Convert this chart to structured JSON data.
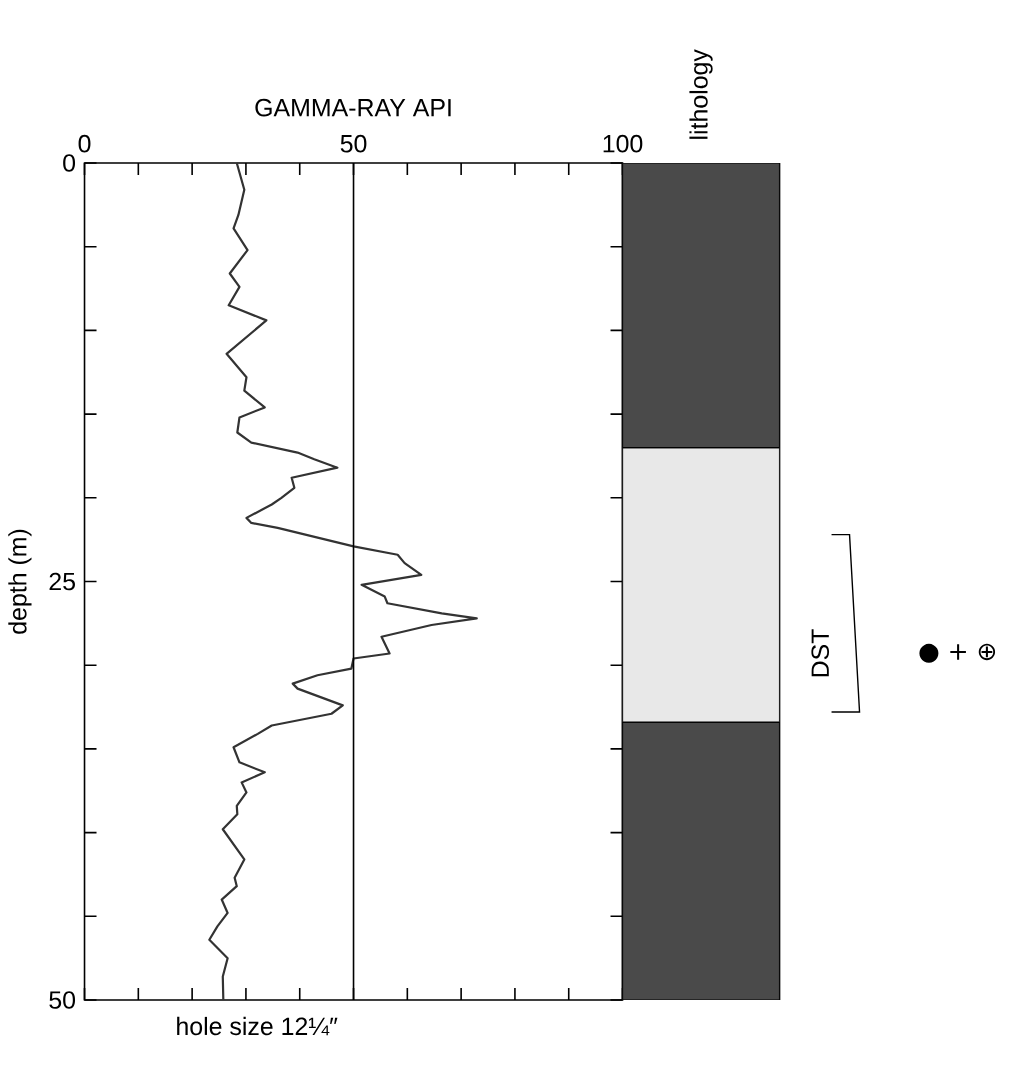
{
  "chart_data": [
    {
      "type": "line",
      "xlabel": "GAMMA-RAY API",
      "ylabel": "depth (m)",
      "xlim": [
        0,
        100
      ],
      "ylim": [
        50,
        0
      ],
      "xticks": [
        0,
        {
          "value": 10,
          "label": null
        },
        {
          "value": 20,
          "label": null
        },
        {
          "value": 30,
          "label": null
        },
        {
          "value": 40,
          "label": null
        },
        50,
        {
          "value": 60,
          "label": null
        },
        {
          "value": 70,
          "label": null
        },
        {
          "value": 80,
          "label": null
        },
        {
          "value": 90,
          "label": null
        },
        100
      ],
      "yticks": [
        0,
        {
          "value": 5,
          "label": null
        },
        {
          "value": 10,
          "label": null
        },
        {
          "value": 15,
          "label": null
        },
        {
          "value": 20,
          "label": null
        },
        25,
        {
          "value": 30,
          "label": null
        },
        {
          "value": 35,
          "label": null
        },
        {
          "value": 40,
          "label": null
        },
        {
          "value": 45,
          "label": null
        },
        50
      ],
      "ref_lines": [
        {
          "axis": "x",
          "value": 50
        }
      ],
      "annotations": [
        "hole size 12¼″"
      ],
      "series": [
        {
          "color": "#333333",
          "x": [
            28.3,
            29.7,
            28.6,
            27.7,
            30.3,
            27.0,
            28.8,
            26.8,
            33.8,
            26.4,
            30.1,
            29.7,
            33.5,
            28.8,
            28.4,
            31.0,
            39.6,
            42.7,
            47.0,
            38.5,
            39.0,
            36.6,
            34.8,
            30.1,
            31.0,
            35.9,
            50.0,
            58.2,
            59.5,
            62.6,
            51.5,
            55.8,
            56.3,
            66.4,
            72.9,
            64.5,
            55.2,
            56.7,
            50.0,
            49.6,
            43.3,
            38.7,
            39.6,
            48.0,
            45.9,
            34.8,
            32.2,
            27.7,
            28.8,
            33.5,
            29.2,
            30.1,
            28.3,
            28.4,
            25.7,
            29.7,
            27.9,
            28.3,
            25.5,
            26.6,
            24.7,
            23.2,
            26.6,
            25.7,
            25.8
          ],
          "values": [
            0,
            1.6,
            3.1,
            3.9,
            5.2,
            6.6,
            7.4,
            8.5,
            9.4,
            11.4,
            12.8,
            13.6,
            14.6,
            15.2,
            16.1,
            16.7,
            17.3,
            17.7,
            18.2,
            18.8,
            19.4,
            20.0,
            20.4,
            21.2,
            21.5,
            21.8,
            22.9,
            23.4,
            23.9,
            24.6,
            25.2,
            25.9,
            26.3,
            26.9,
            27.2,
            27.6,
            28.3,
            29.3,
            29.6,
            30.2,
            30.6,
            31.1,
            31.4,
            32.4,
            32.9,
            33.6,
            34.1,
            34.9,
            35.8,
            36.4,
            37.0,
            37.6,
            38.4,
            38.9,
            39.8,
            41.6,
            42.7,
            43.2,
            44.0,
            44.8,
            45.6,
            46.4,
            47.5,
            48.6,
            50
          ]
        }
      ]
    },
    {
      "type": "bar",
      "stacked": true,
      "title": "lithology",
      "categories": [
        null
      ],
      "ylim": [
        50,
        0
      ],
      "annotations": [
        "DST",
        "● + ⊕"
      ],
      "series": [
        {
          "color": "#4a4a4a",
          "values": [
            17.0
          ]
        },
        {
          "color": "#e8e8e8",
          "values": [
            16.4
          ]
        },
        {
          "color": "#4a4a4a",
          "values": [
            16.6
          ]
        }
      ]
    }
  ]
}
